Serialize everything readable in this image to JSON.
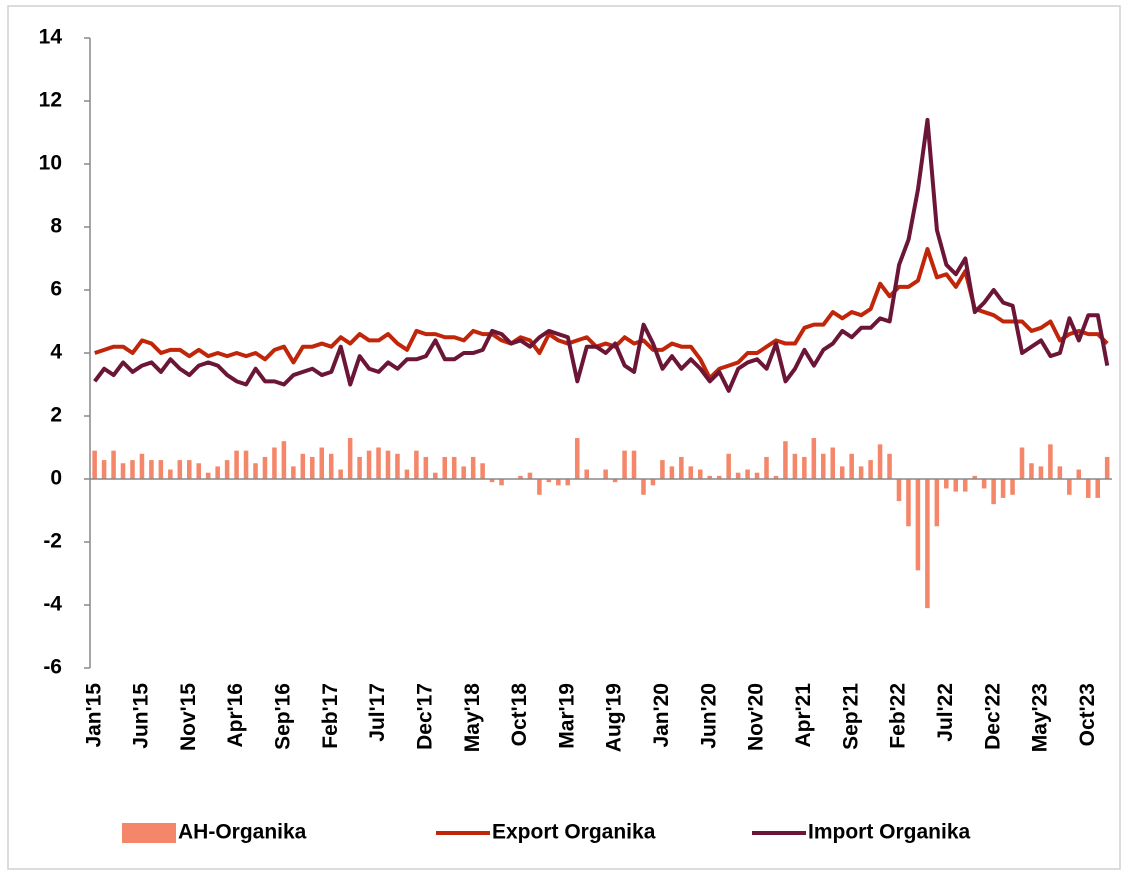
{
  "chart_data": {
    "type": "bar_line",
    "categories": [
      "Jan'15",
      null,
      null,
      null,
      null,
      "Jun'15",
      null,
      null,
      null,
      null,
      "Nov'15",
      null,
      null,
      null,
      null,
      "Apr'16",
      null,
      null,
      null,
      null,
      "Sep'16",
      null,
      null,
      null,
      null,
      "Feb'17",
      null,
      null,
      null,
      null,
      "Jul'17",
      null,
      null,
      null,
      null,
      "Dec'17",
      null,
      null,
      null,
      null,
      "May'18",
      null,
      null,
      null,
      null,
      "Oct'18",
      null,
      null,
      null,
      null,
      "Mar'19",
      null,
      null,
      null,
      null,
      "Aug'19",
      null,
      null,
      null,
      null,
      "Jan'20",
      null,
      null,
      null,
      null,
      "Jun'20",
      null,
      null,
      null,
      null,
      "Nov'20",
      null,
      null,
      null,
      null,
      "Apr'21",
      null,
      null,
      null,
      null,
      "Sep'21",
      null,
      null,
      null,
      null,
      "Feb'22",
      null,
      null,
      null,
      null,
      "Jul'22",
      null,
      null,
      null,
      null,
      "Dec'22",
      null,
      null,
      null,
      null,
      "May'23",
      null,
      null,
      null,
      null,
      "Oct'23",
      null,
      null
    ],
    "series": [
      {
        "name": "AH-Organika",
        "type": "bar",
        "color": "#f4876a",
        "values": [
          0.9,
          0.6,
          0.9,
          0.5,
          0.6,
          0.8,
          0.6,
          0.6,
          0.3,
          0.6,
          0.6,
          0.5,
          0.2,
          0.4,
          0.6,
          0.9,
          0.9,
          0.5,
          0.7,
          1.0,
          1.2,
          0.4,
          0.8,
          0.7,
          1.0,
          0.8,
          0.3,
          1.3,
          0.7,
          0.9,
          1.0,
          0.9,
          0.8,
          0.3,
          0.9,
          0.7,
          0.2,
          0.7,
          0.7,
          0.4,
          0.7,
          0.5,
          -0.1,
          -0.2,
          0.0,
          0.1,
          0.2,
          -0.5,
          -0.1,
          -0.2,
          -0.2,
          1.3,
          0.3,
          0.0,
          0.3,
          -0.1,
          0.9,
          0.9,
          -0.5,
          -0.2,
          0.6,
          0.4,
          0.7,
          0.4,
          0.3,
          0.1,
          0.1,
          0.8,
          0.2,
          0.3,
          0.2,
          0.7,
          0.1,
          1.2,
          0.8,
          0.7,
          1.3,
          0.8,
          1.0,
          0.4,
          0.8,
          0.4,
          0.6,
          1.1,
          0.8,
          -0.7,
          -1.5,
          -2.9,
          -4.1,
          -1.5,
          -0.3,
          -0.4,
          -0.4,
          0.1,
          -0.3,
          -0.8,
          -0.6,
          -0.5,
          1.0,
          0.5,
          0.4,
          1.1,
          0.4,
          -0.5,
          0.3,
          -0.6,
          -0.6,
          0.7
        ]
      },
      {
        "name": "Export Organika",
        "type": "line",
        "color": "#c0260a",
        "values": [
          4.0,
          4.1,
          4.2,
          4.2,
          4.0,
          4.4,
          4.3,
          4.0,
          4.1,
          4.1,
          3.9,
          4.1,
          3.9,
          4.0,
          3.9,
          4.0,
          3.9,
          4.0,
          3.8,
          4.1,
          4.2,
          3.7,
          4.2,
          4.2,
          4.3,
          4.2,
          4.5,
          4.3,
          4.6,
          4.4,
          4.4,
          4.6,
          4.3,
          4.1,
          4.7,
          4.6,
          4.6,
          4.5,
          4.5,
          4.4,
          4.7,
          4.6,
          4.6,
          4.4,
          4.3,
          4.5,
          4.4,
          4.0,
          4.6,
          4.4,
          4.3,
          4.4,
          4.5,
          4.2,
          4.3,
          4.2,
          4.5,
          4.3,
          4.4,
          4.1,
          4.1,
          4.3,
          4.2,
          4.2,
          3.8,
          3.2,
          3.5,
          3.6,
          3.7,
          4.0,
          4.0,
          4.2,
          4.4,
          4.3,
          4.3,
          4.8,
          4.9,
          4.9,
          5.3,
          5.1,
          5.3,
          5.2,
          5.4,
          6.2,
          5.8,
          6.1,
          6.1,
          6.3,
          7.3,
          6.4,
          6.5,
          6.1,
          6.6,
          5.4,
          5.3,
          5.2,
          5.0,
          5.0,
          5.0,
          4.7,
          4.8,
          5.0,
          4.4,
          4.6,
          4.7,
          4.6,
          4.6,
          4.3
        ]
      },
      {
        "name": "Import Organika",
        "type": "line",
        "color": "#6b1537",
        "values": [
          3.1,
          3.5,
          3.3,
          3.7,
          3.4,
          3.6,
          3.7,
          3.4,
          3.8,
          3.5,
          3.3,
          3.6,
          3.7,
          3.6,
          3.3,
          3.1,
          3.0,
          3.5,
          3.1,
          3.1,
          3.0,
          3.3,
          3.4,
          3.5,
          3.3,
          3.4,
          4.2,
          3.0,
          3.9,
          3.5,
          3.4,
          3.7,
          3.5,
          3.8,
          3.8,
          3.9,
          4.4,
          3.8,
          3.8,
          4.0,
          4.0,
          4.1,
          4.7,
          4.6,
          4.3,
          4.4,
          4.2,
          4.5,
          4.7,
          4.6,
          4.5,
          3.1,
          4.2,
          4.2,
          4.0,
          4.3,
          3.6,
          3.4,
          4.9,
          4.3,
          3.5,
          3.9,
          3.5,
          3.8,
          3.5,
          3.1,
          3.4,
          2.8,
          3.5,
          3.7,
          3.8,
          3.5,
          4.3,
          3.1,
          3.5,
          4.1,
          3.6,
          4.1,
          4.3,
          4.7,
          4.5,
          4.8,
          4.8,
          5.1,
          5.0,
          6.8,
          7.6,
          9.2,
          11.4,
          7.9,
          6.8,
          6.5,
          7.0,
          5.3,
          5.6,
          6.0,
          5.6,
          5.5,
          4.0,
          4.2,
          4.4,
          3.9,
          4.0,
          5.1,
          4.4,
          5.2,
          5.2,
          3.6
        ]
      }
    ],
    "ylim": [
      -6,
      14
    ],
    "yticks": [
      -6,
      -4,
      -2,
      0,
      2,
      4,
      6,
      8,
      10,
      12,
      14
    ],
    "legend": "bottom"
  }
}
